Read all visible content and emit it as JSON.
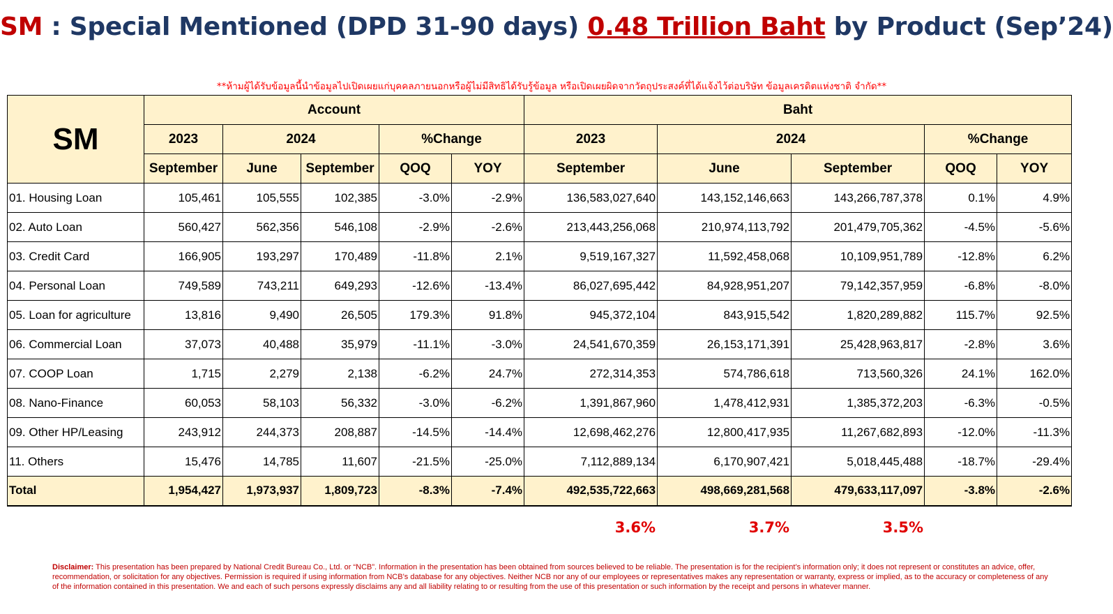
{
  "title": {
    "prefix": "SM",
    "middle": " : Special Mentioned (DPD 31-90 days) ",
    "highlight": "0.48 Trillion Baht",
    "suffix": " by Product (Sep’24)"
  },
  "warning": "**ห้ามผู้ได้รับข้อมูลนี้นำข้อมูลไปเปิดเผยแก่บุคคลภายนอกหรือผู้ไม่มีสิทธิได้รับรู้ข้อมูล หรือเปิดเผยผิดจากวัตถุประสงค์ที่ได้แจ้งไว้ต่อบริษัท ข้อมูลเครดิตแห่งชาติ จำกัด**",
  "table": {
    "corner": "SM",
    "group_account": "Account",
    "group_baht": "Baht",
    "year_2023": "2023",
    "year_2024": "2024",
    "pct_change": "%Change",
    "col_september": "September",
    "col_june": "June",
    "col_qoq": "QOQ",
    "col_yoy": "YOY",
    "rows": [
      {
        "label": "01. Housing Loan",
        "acc_sep23": "105,461",
        "acc_jun24": "105,555",
        "acc_sep24": "102,385",
        "acc_qoq": "-3.0%",
        "acc_yoy": "-2.9%",
        "baht_sep23": "136,583,027,640",
        "baht_jun24": "143,152,146,663",
        "baht_sep24": "143,266,787,378",
        "baht_qoq": "0.1%",
        "baht_yoy": "4.9%"
      },
      {
        "label": "02. Auto Loan",
        "acc_sep23": "560,427",
        "acc_jun24": "562,356",
        "acc_sep24": "546,108",
        "acc_qoq": "-2.9%",
        "acc_yoy": "-2.6%",
        "baht_sep23": "213,443,256,068",
        "baht_jun24": "210,974,113,792",
        "baht_sep24": "201,479,705,362",
        "baht_qoq": "-4.5%",
        "baht_yoy": "-5.6%"
      },
      {
        "label": "03. Credit Card",
        "acc_sep23": "166,905",
        "acc_jun24": "193,297",
        "acc_sep24": "170,489",
        "acc_qoq": "-11.8%",
        "acc_yoy": "2.1%",
        "baht_sep23": "9,519,167,327",
        "baht_jun24": "11,592,458,068",
        "baht_sep24": "10,109,951,789",
        "baht_qoq": "-12.8%",
        "baht_yoy": "6.2%"
      },
      {
        "label": "04. Personal Loan",
        "acc_sep23": "749,589",
        "acc_jun24": "743,211",
        "acc_sep24": "649,293",
        "acc_qoq": "-12.6%",
        "acc_yoy": "-13.4%",
        "baht_sep23": "86,027,695,442",
        "baht_jun24": "84,928,951,207",
        "baht_sep24": "79,142,357,959",
        "baht_qoq": "-6.8%",
        "baht_yoy": "-8.0%"
      },
      {
        "label": "05. Loan for agriculture",
        "acc_sep23": "13,816",
        "acc_jun24": "9,490",
        "acc_sep24": "26,505",
        "acc_qoq": "179.3%",
        "acc_yoy": "91.8%",
        "baht_sep23": "945,372,104",
        "baht_jun24": "843,915,542",
        "baht_sep24": "1,820,289,882",
        "baht_qoq": "115.7%",
        "baht_yoy": "92.5%"
      },
      {
        "label": "06. Commercial Loan",
        "acc_sep23": "37,073",
        "acc_jun24": "40,488",
        "acc_sep24": "35,979",
        "acc_qoq": "-11.1%",
        "acc_yoy": "-3.0%",
        "baht_sep23": "24,541,670,359",
        "baht_jun24": "26,153,171,391",
        "baht_sep24": "25,428,963,817",
        "baht_qoq": "-2.8%",
        "baht_yoy": "3.6%"
      },
      {
        "label": "07. COOP Loan",
        "acc_sep23": "1,715",
        "acc_jun24": "2,279",
        "acc_sep24": "2,138",
        "acc_qoq": "-6.2%",
        "acc_yoy": "24.7%",
        "baht_sep23": "272,314,353",
        "baht_jun24": "574,786,618",
        "baht_sep24": "713,560,326",
        "baht_qoq": "24.1%",
        "baht_yoy": "162.0%"
      },
      {
        "label": "08. Nano-Finance",
        "acc_sep23": "60,053",
        "acc_jun24": "58,103",
        "acc_sep24": "56,332",
        "acc_qoq": "-3.0%",
        "acc_yoy": "-6.2%",
        "baht_sep23": "1,391,867,960",
        "baht_jun24": "1,478,412,931",
        "baht_sep24": "1,385,372,203",
        "baht_qoq": "-6.3%",
        "baht_yoy": "-0.5%"
      },
      {
        "label": "09. Other HP/Leasing",
        "acc_sep23": "243,912",
        "acc_jun24": "244,373",
        "acc_sep24": "208,887",
        "acc_qoq": "-14.5%",
        "acc_yoy": "-14.4%",
        "baht_sep23": "12,698,462,276",
        "baht_jun24": "12,800,417,935",
        "baht_sep24": "11,267,682,893",
        "baht_qoq": "-12.0%",
        "baht_yoy": "-11.3%"
      },
      {
        "label": "11. Others",
        "acc_sep23": "15,476",
        "acc_jun24": "14,785",
        "acc_sep24": "11,607",
        "acc_qoq": "-21.5%",
        "acc_yoy": "-25.0%",
        "baht_sep23": "7,112,889,134",
        "baht_jun24": "6,170,907,421",
        "baht_sep24": "5,018,445,488",
        "baht_qoq": "-18.7%",
        "baht_yoy": "-29.4%"
      }
    ],
    "total": {
      "label": "Total",
      "acc_sep23": "1,954,427",
      "acc_jun24": "1,973,937",
      "acc_sep24": "1,809,723",
      "acc_qoq": "-8.3%",
      "acc_yoy": "-7.4%",
      "baht_sep23": "492,535,722,663",
      "baht_jun24": "498,669,281,568",
      "baht_sep24": "479,633,117,097",
      "baht_qoq": "-3.8%",
      "baht_yoy": "-2.6%"
    }
  },
  "shares": {
    "sep23": "3.6%",
    "jun24": "3.7%",
    "sep24": "3.5%"
  },
  "disclaimer": {
    "label": "Disclaimer:",
    "text": " This presentation has been prepared by National Credit Bureau Co., Ltd. or “NCB”. Information in the presentation has been obtained from sources believed to be reliable. The presentation is for the recipient’s information only; it does not represent or constitutes an advice, offer, recommendation, or solicitation for any objectives. Permission is required if using information from NCB’s database for any objectives. Neither NCB nor any of our employees or representatives makes any representation or warranty, express or implied, as to the accuracy or completeness of any of the information contained in this presentation. We and each of such persons expressly disclaims any and all liability relating to or resulting from the use of this presentation or such information by the receipt and persons in whatever manner."
  },
  "colors": {
    "title_blue": "#1f3864",
    "accent_red": "#c00000",
    "header_fill": "#fff2cc"
  }
}
